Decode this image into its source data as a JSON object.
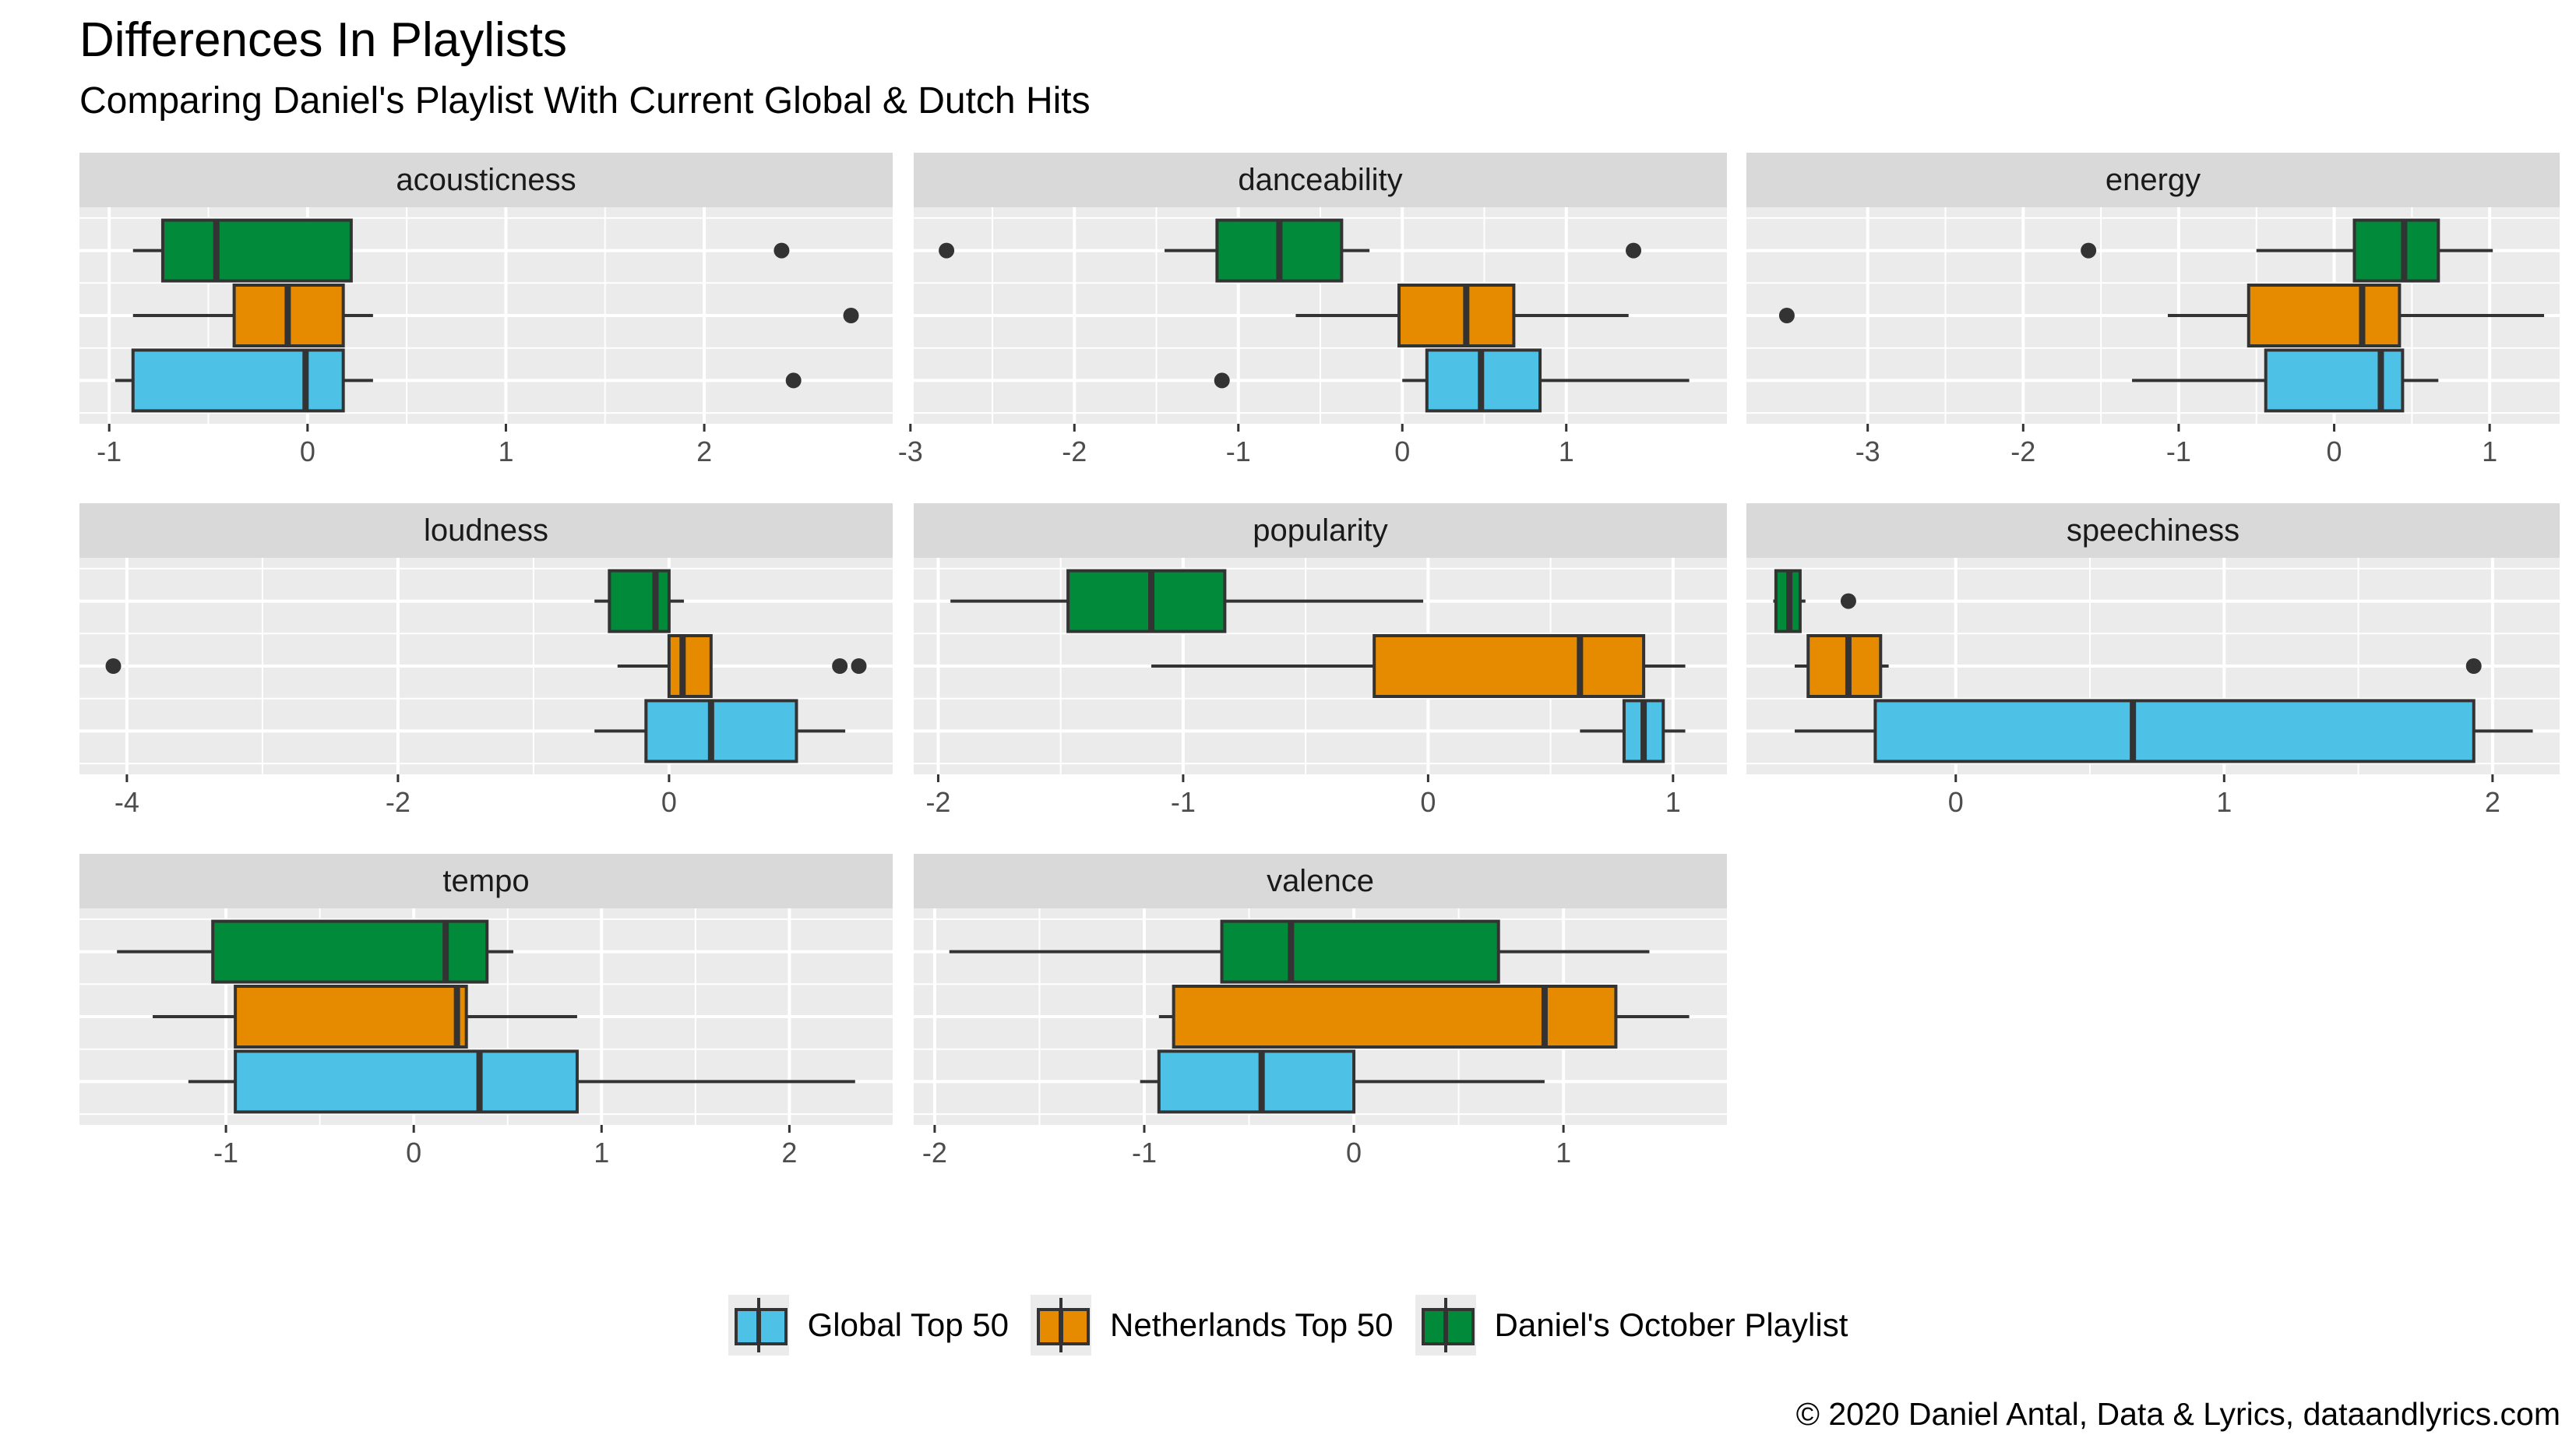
{
  "title": "Differences In Playlists",
  "subtitle": "Comparing Daniel's Playlist With Current Global & Dutch Hits",
  "caption": "© 2020 Daniel Antal, Data & Lyrics, dataandlyrics.com",
  "colors": {
    "panel_bg": "#ebebeb",
    "strip_bg": "#d9d9d9",
    "grid": "#ffffff",
    "outline": "#333333",
    "Global Top 50": "#4ec1e6",
    "Netherlands Top 50": "#e68a00",
    "Daniel's October Playlist": "#008a3a"
  },
  "legend": [
    {
      "label": "Global Top 50",
      "color": "#4ec1e6"
    },
    {
      "label": "Netherlands Top 50",
      "color": "#e68a00"
    },
    {
      "label": "Daniel's October Playlist",
      "color": "#008a3a"
    }
  ],
  "chart_data": {
    "type": "boxplot",
    "orientation": "horizontal",
    "facet_by": "feature",
    "groups": [
      "Global Top 50",
      "Netherlands Top 50",
      "Daniel's October Playlist"
    ],
    "y_tick_labels": "none",
    "grid": true,
    "legend_position": "bottom",
    "panels": [
      {
        "name": "acousticness",
        "xlim": [
          -1.15,
          2.95
        ],
        "ticks": [
          -1,
          0,
          1,
          2
        ],
        "boxes": [
          {
            "group": "Global Top 50",
            "lo": -0.97,
            "q1": -0.88,
            "median": -0.01,
            "q3": 0.18,
            "hi": 0.33,
            "outliers": [
              2.45
            ]
          },
          {
            "group": "Netherlands Top 50",
            "lo": -0.88,
            "q1": -0.37,
            "median": -0.1,
            "q3": 0.18,
            "hi": 0.33,
            "outliers": [
              2.74
            ]
          },
          {
            "group": "Daniel's October Playlist",
            "lo": -0.88,
            "q1": -0.73,
            "median": -0.46,
            "q3": 0.22,
            "hi": 0.22,
            "outliers": [
              2.39
            ]
          }
        ]
      },
      {
        "name": "danceability",
        "xlim": [
          -2.98,
          1.98
        ],
        "ticks": [
          -3,
          -2,
          -1,
          0,
          1
        ],
        "boxes": [
          {
            "group": "Global Top 50",
            "lo": 0.0,
            "q1": 0.15,
            "median": 0.48,
            "q3": 0.84,
            "hi": 1.75,
            "outliers": [
              -1.1
            ]
          },
          {
            "group": "Netherlands Top 50",
            "lo": -0.65,
            "q1": -0.02,
            "median": 0.39,
            "q3": 0.68,
            "hi": 1.38,
            "outliers": []
          },
          {
            "group": "Daniel's October Playlist",
            "lo": -1.45,
            "q1": -1.13,
            "median": -0.75,
            "q3": -0.37,
            "hi": -0.2,
            "outliers": [
              -2.78,
              1.41
            ]
          }
        ]
      },
      {
        "name": "energy",
        "xlim": [
          -3.78,
          1.45
        ],
        "ticks": [
          -3,
          -2,
          -1,
          0,
          1
        ],
        "boxes": [
          {
            "group": "Global Top 50",
            "lo": -1.3,
            "q1": -0.44,
            "median": 0.3,
            "q3": 0.44,
            "hi": 0.67,
            "outliers": []
          },
          {
            "group": "Netherlands Top 50",
            "lo": -1.07,
            "q1": -0.55,
            "median": 0.18,
            "q3": 0.42,
            "hi": 1.35,
            "outliers": [
              -3.52
            ]
          },
          {
            "group": "Daniel's October Playlist",
            "lo": -0.5,
            "q1": 0.13,
            "median": 0.45,
            "q3": 0.67,
            "hi": 1.02,
            "outliers": [
              -1.58
            ]
          }
        ]
      },
      {
        "name": "loudness",
        "xlim": [
          -4.35,
          1.65
        ],
        "ticks": [
          -4,
          -2,
          0
        ],
        "boxes": [
          {
            "group": "Global Top 50",
            "lo": -0.55,
            "q1": -0.17,
            "median": 0.31,
            "q3": 0.94,
            "hi": 1.3,
            "outliers": []
          },
          {
            "group": "Netherlands Top 50",
            "lo": -0.38,
            "q1": 0.0,
            "median": 0.1,
            "q3": 0.31,
            "hi": 0.31,
            "outliers": [
              -4.1,
              1.26,
              1.4
            ]
          },
          {
            "group": "Daniel's October Playlist",
            "lo": -0.55,
            "q1": -0.44,
            "median": -0.1,
            "q3": 0.0,
            "hi": 0.11,
            "outliers": []
          }
        ]
      },
      {
        "name": "popularity",
        "xlim": [
          -2.1,
          1.22
        ],
        "ticks": [
          -2,
          -1,
          0,
          1
        ],
        "boxes": [
          {
            "group": "Global Top 50",
            "lo": 0.62,
            "q1": 0.8,
            "median": 0.88,
            "q3": 0.96,
            "hi": 1.05,
            "outliers": []
          },
          {
            "group": "Netherlands Top 50",
            "lo": -1.13,
            "q1": -0.22,
            "median": 0.62,
            "q3": 0.88,
            "hi": 1.05,
            "outliers": []
          },
          {
            "group": "Daniel's October Playlist",
            "lo": -1.95,
            "q1": -1.47,
            "median": -1.13,
            "q3": -0.83,
            "hi": -0.02,
            "outliers": []
          }
        ]
      },
      {
        "name": "speechiness",
        "xlim": [
          -0.78,
          2.25
        ],
        "ticks": [
          0,
          1,
          2
        ],
        "boxes": [
          {
            "group": "Global Top 50",
            "lo": -0.6,
            "q1": -0.3,
            "median": 0.66,
            "q3": 1.93,
            "hi": 2.15,
            "outliers": []
          },
          {
            "group": "Netherlands Top 50",
            "lo": -0.6,
            "q1": -0.55,
            "median": -0.4,
            "q3": -0.28,
            "hi": -0.25,
            "outliers": [
              1.93
            ]
          },
          {
            "group": "Daniel's October Playlist",
            "lo": -0.68,
            "q1": -0.67,
            "median": -0.62,
            "q3": -0.58,
            "hi": -0.56,
            "outliers": [
              -0.4
            ]
          }
        ]
      },
      {
        "name": "tempo",
        "xlim": [
          -1.78,
          2.55
        ],
        "ticks": [
          -1,
          0,
          1,
          2
        ],
        "boxes": [
          {
            "group": "Global Top 50",
            "lo": -1.2,
            "q1": -0.95,
            "median": 0.35,
            "q3": 0.87,
            "hi": 2.35,
            "outliers": []
          },
          {
            "group": "Netherlands Top 50",
            "lo": -1.39,
            "q1": -0.95,
            "median": 0.23,
            "q3": 0.28,
            "hi": 0.87,
            "outliers": []
          },
          {
            "group": "Daniel's October Playlist",
            "lo": -1.58,
            "q1": -1.07,
            "median": 0.17,
            "q3": 0.39,
            "hi": 0.53,
            "outliers": []
          }
        ]
      },
      {
        "name": "valence",
        "xlim": [
          -2.1,
          1.78
        ],
        "ticks": [
          -2,
          -1,
          0,
          1
        ],
        "boxes": [
          {
            "group": "Global Top 50",
            "lo": -1.02,
            "q1": -0.93,
            "median": -0.44,
            "q3": 0.0,
            "hi": 0.91,
            "outliers": []
          },
          {
            "group": "Netherlands Top 50",
            "lo": -0.93,
            "q1": -0.86,
            "median": 0.91,
            "q3": 1.25,
            "hi": 1.6,
            "outliers": []
          },
          {
            "group": "Daniel's October Playlist",
            "lo": -1.93,
            "q1": -0.63,
            "median": -0.3,
            "q3": 0.69,
            "hi": 1.41,
            "outliers": []
          }
        ]
      }
    ]
  }
}
